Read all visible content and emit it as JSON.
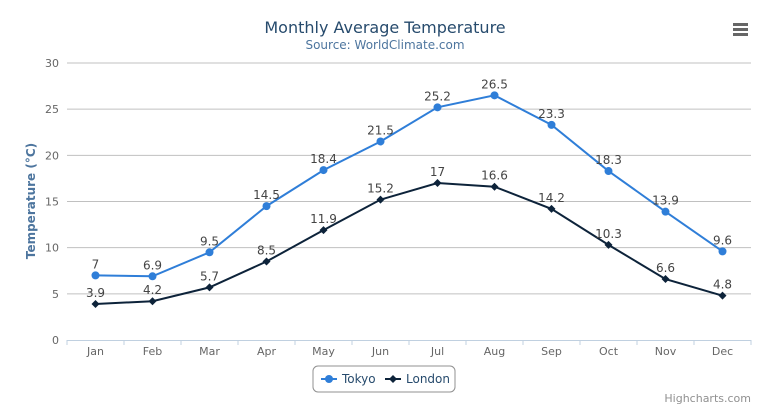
{
  "chart_data": {
    "type": "line",
    "title": "Monthly Average Temperature",
    "subtitle": "Source: WorldClimate.com",
    "xlabel": "",
    "ylabel": "Temperature (°C)",
    "categories": [
      "Jan",
      "Feb",
      "Mar",
      "Apr",
      "May",
      "Jun",
      "Jul",
      "Aug",
      "Sep",
      "Oct",
      "Nov",
      "Dec"
    ],
    "ylim": [
      0,
      30
    ],
    "yticks": [
      0,
      5,
      10,
      15,
      20,
      25,
      30
    ],
    "grid": true,
    "legend_position": "bottom-center",
    "data_labels": true,
    "series": [
      {
        "name": "Tokyo",
        "color": "#2f7ed8",
        "marker": "circle",
        "values": [
          7,
          6.9,
          9.5,
          14.5,
          18.4,
          21.5,
          25.2,
          26.5,
          23.3,
          18.3,
          13.9,
          9.6
        ]
      },
      {
        "name": "London",
        "color": "#0d233a",
        "marker": "diamond",
        "values": [
          3.9,
          4.2,
          5.7,
          8.5,
          11.9,
          15.2,
          17,
          16.6,
          14.2,
          10.3,
          6.6,
          4.8
        ]
      }
    ]
  },
  "menu_icon": "hamburger-menu-icon",
  "credit": "Highcharts.com"
}
